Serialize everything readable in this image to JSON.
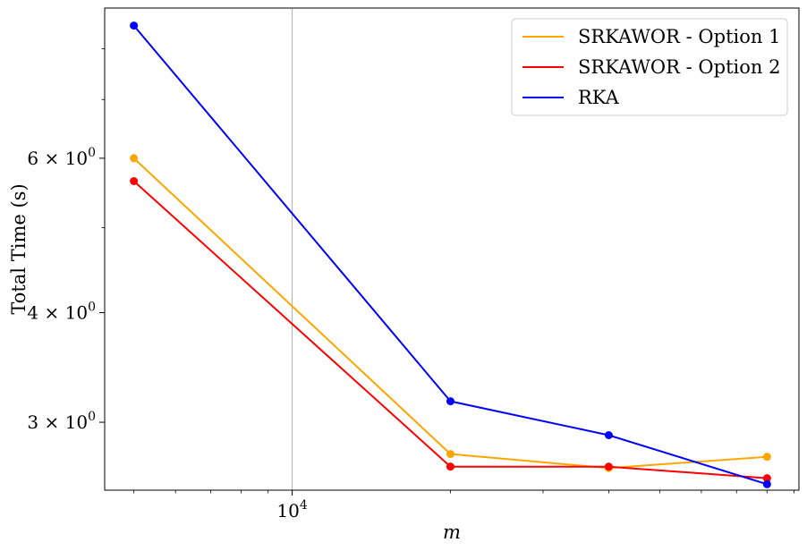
{
  "chart_data": {
    "type": "line",
    "title": "",
    "xlabel": "m",
    "ylabel": "Total Time (s)",
    "x": [
      5000,
      20000,
      40000,
      80000
    ],
    "xscale": "log",
    "yscale": "log",
    "xlim": [
      4400,
      92000
    ],
    "ylim": [
      2.51,
      8.9
    ],
    "xticks": [
      {
        "value": 10000,
        "label": "10^4"
      }
    ],
    "yticks": [
      {
        "value": 3,
        "label": "3 × 10^0"
      },
      {
        "value": 4,
        "label": "4 × 10^0"
      },
      {
        "value": 6,
        "label": "6 × 10^0"
      }
    ],
    "grid": "x-major",
    "legend": "top-right",
    "series": [
      {
        "name": "SRKAWOR - Option 1",
        "color": "#ffa500",
        "values": [
          6.0,
          2.76,
          2.66,
          2.74
        ]
      },
      {
        "name": "SRKAWOR - Option 2",
        "color": "#ff0000",
        "values": [
          5.65,
          2.67,
          2.67,
          2.59
        ]
      },
      {
        "name": "RKA",
        "color": "#0000ff",
        "values": [
          8.5,
          3.17,
          2.9,
          2.55
        ]
      }
    ]
  }
}
